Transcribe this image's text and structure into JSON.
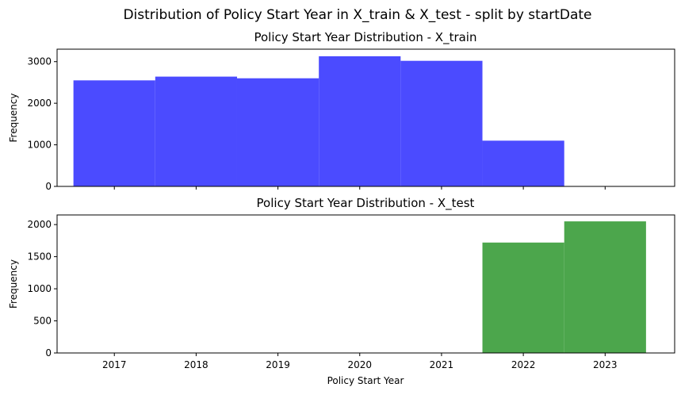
{
  "suptitle": "Distribution of Policy Start Year in X_train & X_test - split by startDate",
  "chart_data": [
    {
      "type": "bar",
      "title": "Policy Start Year Distribution - X_train",
      "xlabel": "",
      "ylabel": "Frequency",
      "color": "#4b4bff",
      "categories": [
        2017,
        2018,
        2019,
        2020,
        2021,
        2022
      ],
      "values": [
        2550,
        2640,
        2600,
        3130,
        3020,
        1100
      ],
      "xlim": [
        2016.3,
        2023.85
      ],
      "ylim": [
        0,
        3300
      ],
      "yticks": [
        0,
        1000,
        2000,
        3000
      ],
      "xticks": [
        2017,
        2018,
        2019,
        2020,
        2021,
        2022,
        2023
      ],
      "xtick_labels_visible": false,
      "grid": false
    },
    {
      "type": "bar",
      "title": "Policy Start Year Distribution - X_test",
      "xlabel": "Policy Start Year",
      "ylabel": "Frequency",
      "color": "#4ca64c",
      "categories": [
        2022,
        2023
      ],
      "values": [
        1720,
        2050
      ],
      "xlim": [
        2016.3,
        2023.85
      ],
      "ylim": [
        0,
        2150
      ],
      "yticks": [
        0,
        500,
        1000,
        1500,
        2000
      ],
      "xticks": [
        2017,
        2018,
        2019,
        2020,
        2021,
        2022,
        2023
      ],
      "xtick_labels_visible": true,
      "grid": false
    }
  ]
}
